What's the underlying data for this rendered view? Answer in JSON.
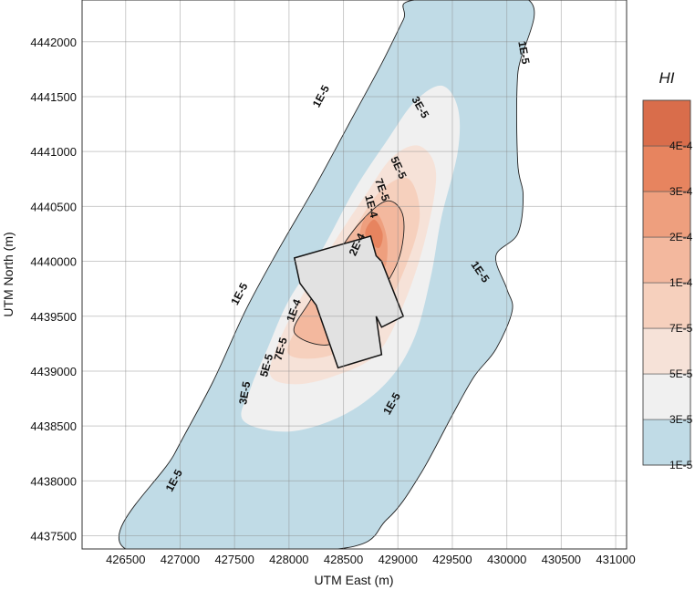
{
  "chart_data": {
    "type": "contour",
    "title": "",
    "xlabel": "UTM East (m)",
    "ylabel": "UTM North (m)",
    "xlim": [
      426100,
      431100
    ],
    "ylim": [
      4437380,
      4442380
    ],
    "x_ticks": [
      426500,
      427000,
      427500,
      428000,
      428500,
      429000,
      429500,
      430000,
      430500,
      431000
    ],
    "y_ticks": [
      4437500,
      4438000,
      4438500,
      4439000,
      4439500,
      4440000,
      4440500,
      4441000,
      4441500,
      4442000
    ],
    "grid": true,
    "legend": {
      "title": "HI",
      "placement": "right",
      "levels": [
        "1E-5",
        "3E-5",
        "5E-5",
        "7E-5",
        "1E-4",
        "2E-4",
        "3E-4",
        "4E-4"
      ],
      "colors": [
        "#c0dbe6",
        "#f0f0f0",
        "#f6e2d8",
        "#f6d0bd",
        "#f3b89e",
        "#ee9f7e",
        "#e7845f",
        "#d96d4b"
      ]
    },
    "contours": [
      {
        "level": "1E-5",
        "color": "#c0dbe6",
        "outline": true,
        "points": [
          [
            426500,
            4437380
          ],
          [
            426950,
            4438250
          ],
          [
            427300,
            4438900
          ],
          [
            427600,
            4439550
          ],
          [
            427900,
            4440100
          ],
          [
            428250,
            4440700
          ],
          [
            428550,
            4441250
          ],
          [
            428850,
            4441800
          ],
          [
            429050,
            4442200
          ],
          [
            429150,
            4442380
          ],
          [
            430200,
            4442380
          ],
          [
            430100,
            4441700
          ],
          [
            430100,
            4440900
          ],
          [
            430150,
            4440600
          ],
          [
            430100,
            4440250
          ],
          [
            429900,
            4440050
          ],
          [
            430000,
            4439750
          ],
          [
            430050,
            4439550
          ],
          [
            429900,
            4439200
          ],
          [
            429700,
            4438950
          ],
          [
            429500,
            4438600
          ],
          [
            429200,
            4438050
          ],
          [
            428900,
            4437650
          ],
          [
            428450,
            4437380
          ]
        ]
      },
      {
        "level": "3E-5",
        "color": "#f0f0f0",
        "outline": false,
        "points": [
          [
            427580,
            4438550
          ],
          [
            427650,
            4438850
          ],
          [
            427800,
            4439200
          ],
          [
            428000,
            4439650
          ],
          [
            428300,
            4440100
          ],
          [
            428600,
            4440650
          ],
          [
            428900,
            4441100
          ],
          [
            429150,
            4441450
          ],
          [
            429400,
            4441600
          ],
          [
            429550,
            4441400
          ],
          [
            429550,
            4441000
          ],
          [
            429400,
            4440400
          ],
          [
            429300,
            4439850
          ],
          [
            429150,
            4439300
          ],
          [
            428900,
            4438900
          ],
          [
            428500,
            4438600
          ],
          [
            428000,
            4438450
          ]
        ]
      },
      {
        "level": "5E-5",
        "color": "#f6e2d8",
        "outline": false,
        "points": [
          [
            427830,
            4438960
          ],
          [
            427900,
            4439250
          ],
          [
            428100,
            4439650
          ],
          [
            428400,
            4440150
          ],
          [
            428700,
            4440600
          ],
          [
            428950,
            4440950
          ],
          [
            429200,
            4441050
          ],
          [
            429350,
            4440800
          ],
          [
            429250,
            4440200
          ],
          [
            429050,
            4439600
          ],
          [
            428800,
            4439150
          ],
          [
            428400,
            4438950
          ],
          [
            428050,
            4438880
          ]
        ]
      },
      {
        "level": "7E-5",
        "color": "#f6d0bd",
        "outline": false,
        "points": [
          [
            428000,
            4439150
          ],
          [
            428100,
            4439450
          ],
          [
            428350,
            4439900
          ],
          [
            428600,
            4440300
          ],
          [
            428850,
            4440650
          ],
          [
            429100,
            4440750
          ],
          [
            429200,
            4440400
          ],
          [
            429050,
            4439900
          ],
          [
            428800,
            4439450
          ],
          [
            428400,
            4439150
          ]
        ]
      },
      {
        "level": "1E-4",
        "color": "#f3b89e",
        "outline": true,
        "points": [
          [
            428050,
            4439350
          ],
          [
            428200,
            4439650
          ],
          [
            428400,
            4440000
          ],
          [
            428650,
            4440350
          ],
          [
            428900,
            4440550
          ],
          [
            429050,
            4440400
          ],
          [
            429000,
            4440000
          ],
          [
            428750,
            4439600
          ],
          [
            428400,
            4439250
          ]
        ]
      },
      {
        "level": "2E-4",
        "color": "#ee9f7e",
        "outline": false,
        "points": [
          [
            428650,
            4440200
          ],
          [
            428700,
            4440400
          ],
          [
            428820,
            4440420
          ],
          [
            428900,
            4440200
          ],
          [
            428880,
            4439950
          ],
          [
            428750,
            4440050
          ]
        ]
      },
      {
        "level": "3E-4",
        "color": "#e7845f",
        "outline": false,
        "points": [
          [
            428700,
            4440250
          ],
          [
            428780,
            4440380
          ],
          [
            428860,
            4440250
          ],
          [
            428820,
            4440120
          ]
        ]
      }
    ],
    "contour_labels": [
      {
        "text": "1E-5",
        "x": 426950,
        "y": 4438000,
        "angle": -62
      },
      {
        "text": "1E-5",
        "x": 427550,
        "y": 4439700,
        "angle": -62
      },
      {
        "text": "1E-5",
        "x": 428300,
        "y": 4441500,
        "angle": -62
      },
      {
        "text": "1E-5",
        "x": 430150,
        "y": 4441900,
        "angle": 80
      },
      {
        "text": "1E-5",
        "x": 429750,
        "y": 4439900,
        "angle": 55
      },
      {
        "text": "1E-5",
        "x": 428950,
        "y": 4438700,
        "angle": -60
      },
      {
        "text": "3E-5",
        "x": 427600,
        "y": 4438800,
        "angle": -80
      },
      {
        "text": "3E-5",
        "x": 429200,
        "y": 4441400,
        "angle": 60
      },
      {
        "text": "5E-5",
        "x": 427800,
        "y": 4439050,
        "angle": -75
      },
      {
        "text": "5E-5",
        "x": 429000,
        "y": 4440850,
        "angle": 65
      },
      {
        "text": "7E-5",
        "x": 427930,
        "y": 4439200,
        "angle": -75
      },
      {
        "text": "7E-5",
        "x": 428850,
        "y": 4440650,
        "angle": 70
      },
      {
        "text": "1E-4",
        "x": 428050,
        "y": 4439550,
        "angle": -70
      },
      {
        "text": "1E-4",
        "x": 428750,
        "y": 4440500,
        "angle": 75
      },
      {
        "text": "2E-4",
        "x": 428630,
        "y": 4440150,
        "angle": -65
      }
    ],
    "facility_polygon": [
      [
        428050,
        4440030
      ],
      [
        428750,
        4440230
      ],
      [
        428800,
        4440050
      ],
      [
        428850,
        4440000
      ],
      [
        429050,
        4439500
      ],
      [
        428850,
        4439400
      ],
      [
        428800,
        4439500
      ],
      [
        428850,
        4439150
      ],
      [
        428450,
        4439030
      ],
      [
        428250,
        4439600
      ],
      [
        428100,
        4439800
      ]
    ]
  }
}
